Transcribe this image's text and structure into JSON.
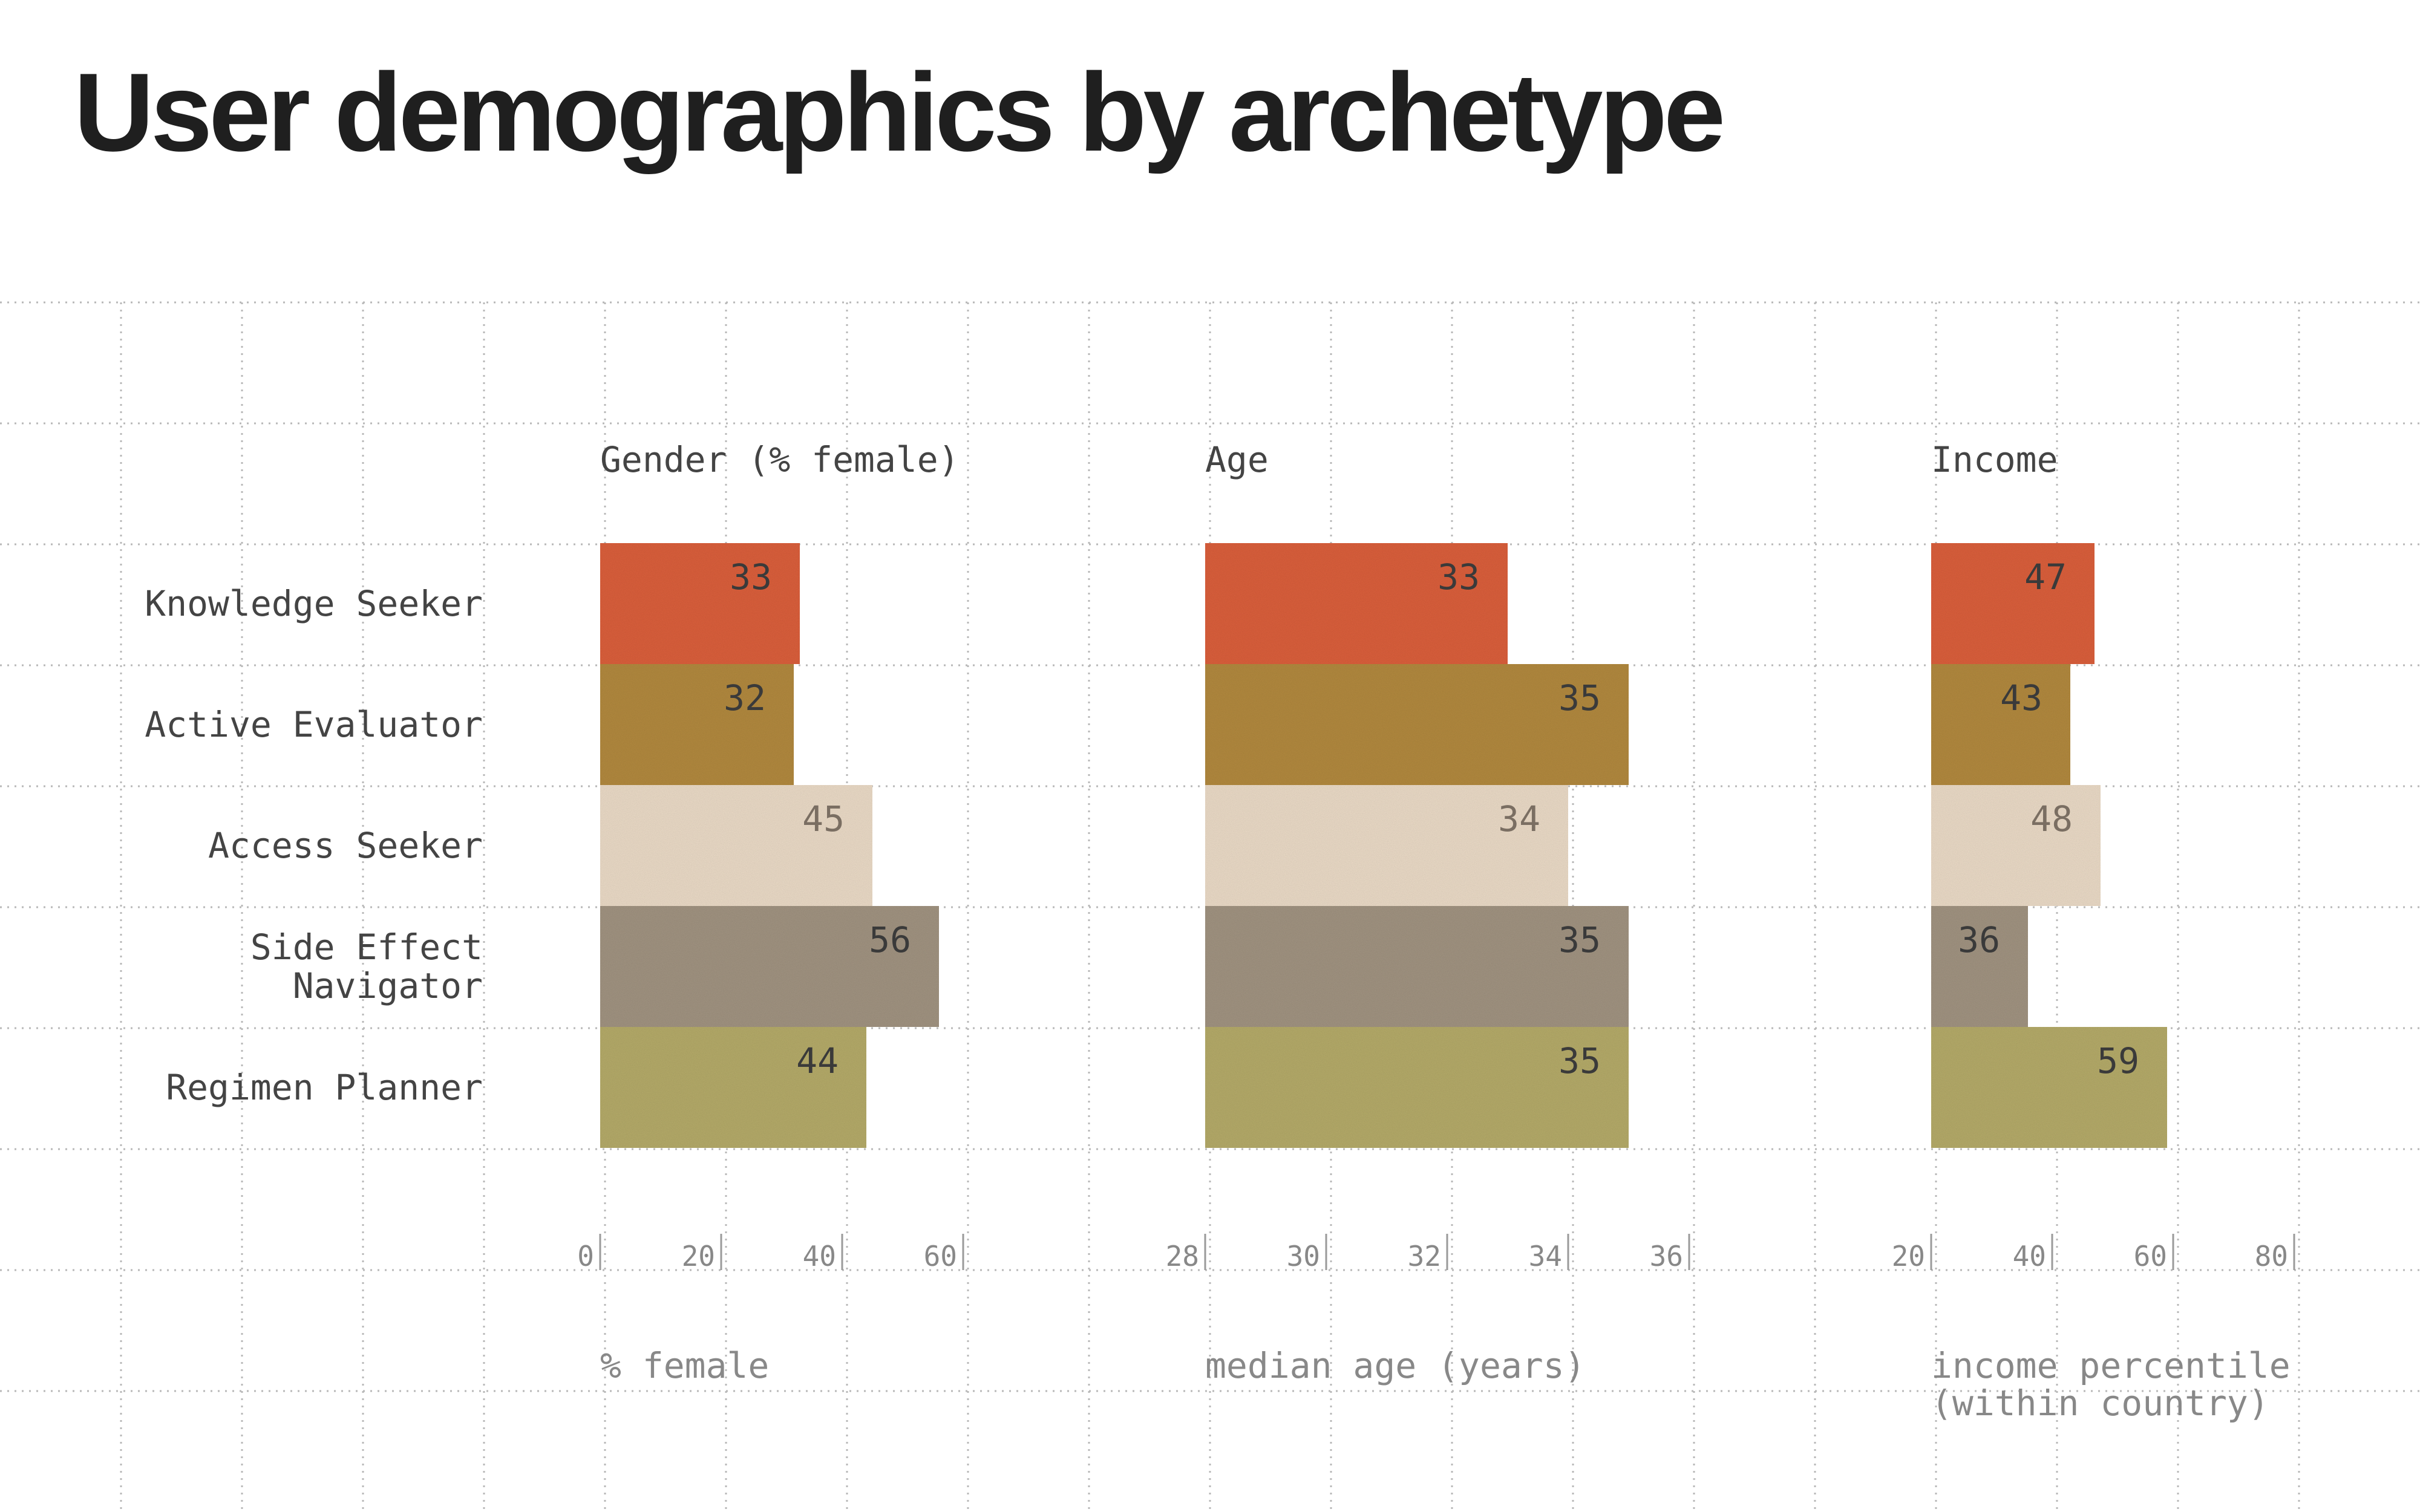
{
  "title": "User demographics by archetype",
  "colors": {
    "grid": "#b8b8b8",
    "label_text": "#444444",
    "panel_title_text": "#444444",
    "tick_text": "#888888",
    "axis_label_text": "#888888",
    "value_text": "#3a3a3a",
    "bars": [
      "#dc603c",
      "#b38a40",
      "#ecdcc8",
      "#a29482",
      "#b6ac6a"
    ]
  },
  "chart_data": [
    {
      "type": "bar",
      "orientation": "horizontal",
      "title": "Gender (% female)",
      "xlabel": "% female",
      "categories": [
        "Knowledge Seeker",
        "Active Evaluator",
        "Access Seeker",
        "Side Effect\nNavigator",
        "Regimen Planner"
      ],
      "values": [
        33,
        32,
        45,
        56,
        44
      ],
      "xlim": [
        0,
        60
      ],
      "ticks": [
        "0",
        "20",
        "40",
        "60"
      ],
      "tick_values": [
        0,
        20,
        40,
        60
      ]
    },
    {
      "type": "bar",
      "orientation": "horizontal",
      "title": "Age",
      "xlabel": "median age (years)",
      "categories": [
        "Knowledge Seeker",
        "Active Evaluator",
        "Access Seeker",
        "Side Effect\nNavigator",
        "Regimen Planner"
      ],
      "values": [
        33,
        35,
        34,
        35,
        35
      ],
      "xlim": [
        28,
        36
      ],
      "ticks": [
        "28",
        "30",
        "32",
        "34",
        "36"
      ],
      "tick_values": [
        28,
        30,
        32,
        34,
        36
      ]
    },
    {
      "type": "bar",
      "orientation": "horizontal",
      "title": "Income",
      "xlabel": "income percentile\n(within country)",
      "categories": [
        "Knowledge Seeker",
        "Active Evaluator",
        "Access Seeker",
        "Side Effect\nNavigator",
        "Regimen Planner"
      ],
      "values": [
        47,
        43,
        48,
        36,
        59
      ],
      "xlim": [
        20,
        80
      ],
      "ticks": [
        "20",
        "40",
        "60",
        "80"
      ],
      "tick_values": [
        20,
        40,
        60,
        80
      ]
    }
  ]
}
